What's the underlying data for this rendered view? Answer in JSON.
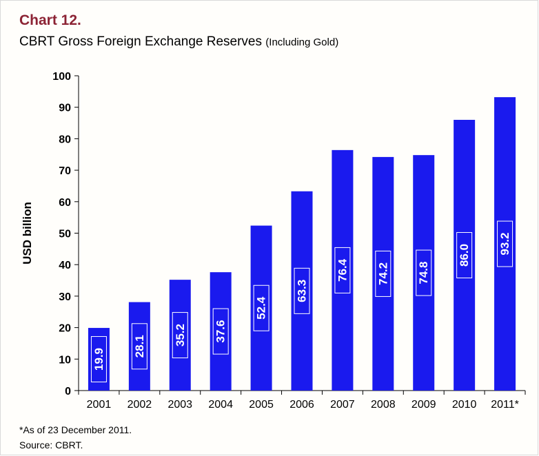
{
  "header": {
    "chart_number": "Chart 12.",
    "title": "CBRT Gross Foreign Exchange Reserves",
    "title_suffix": "(Including Gold)"
  },
  "footnotes": {
    "note": "*As of 23 December 2011.",
    "source": "Source: CBRT."
  },
  "colors": {
    "bar": "#1a1aee",
    "chart_number": "#8c2334"
  },
  "chart_data": {
    "type": "bar",
    "categories": [
      "2001",
      "2002",
      "2003",
      "2004",
      "2005",
      "2006",
      "2007",
      "2008",
      "2009",
      "2010",
      "2011*"
    ],
    "values": [
      19.9,
      28.1,
      35.2,
      37.6,
      52.4,
      63.3,
      76.4,
      74.2,
      74.8,
      86.0,
      93.2
    ],
    "data_labels": [
      "19.9",
      "28.1",
      "35.2",
      "37.6",
      "52.4",
      "63.3",
      "76.4",
      "74.2",
      "74.8",
      "86.0",
      "93.2"
    ],
    "ylabel": "USD billion",
    "ylim": [
      0,
      100
    ],
    "yticks": [
      "0",
      "10",
      "20",
      "30",
      "40",
      "50",
      "60",
      "70",
      "80",
      "90",
      "100"
    ],
    "grid": false,
    "legend": "none"
  }
}
